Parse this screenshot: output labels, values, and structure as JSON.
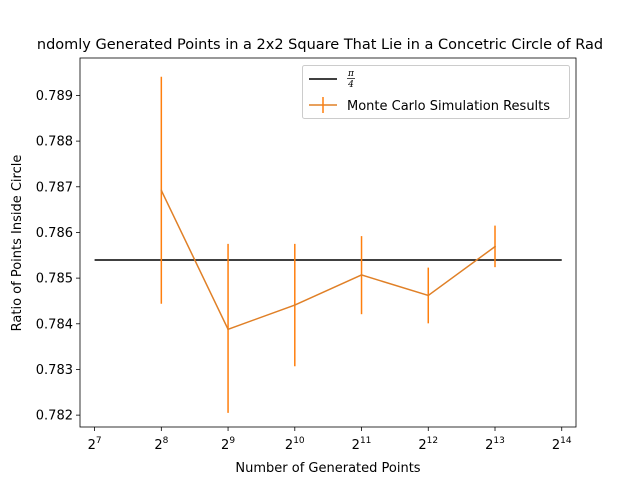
{
  "chart_data": {
    "type": "line",
    "title": "ndomly Generated Points in a 2x2 Square That Lie in a Concetric Circle of Rad",
    "xlabel": "Number of Generated Points",
    "ylabel": "Ratio of Points Inside Circle",
    "x_scale": "log2",
    "x_tick_base": "2",
    "x_ticks": [
      {
        "value": 128,
        "exp": "7"
      },
      {
        "value": 256,
        "exp": "8"
      },
      {
        "value": 512,
        "exp": "9"
      },
      {
        "value": 1024,
        "exp": "10"
      },
      {
        "value": 2048,
        "exp": "11"
      },
      {
        "value": 4096,
        "exp": "12"
      },
      {
        "value": 8192,
        "exp": "13"
      },
      {
        "value": 16384,
        "exp": "14"
      }
    ],
    "y_ticks": [
      {
        "value": 0.782,
        "label": "0.782"
      },
      {
        "value": 0.783,
        "label": "0.783"
      },
      {
        "value": 0.784,
        "label": "0.784"
      },
      {
        "value": 0.785,
        "label": "0.785"
      },
      {
        "value": 0.786,
        "label": "0.786"
      },
      {
        "value": 0.787,
        "label": "0.787"
      },
      {
        "value": 0.788,
        "label": "0.788"
      },
      {
        "value": 0.789,
        "label": "0.789"
      }
    ],
    "xlim": [
      110,
      19000
    ],
    "ylim": [
      0.78174,
      0.78982
    ],
    "reference_line": {
      "label_num": "π",
      "label_den": "4",
      "color": "#000000",
      "y": 0.785398,
      "x_range": [
        128,
        16384
      ]
    },
    "series": [
      {
        "name": "Monte Carlo Simulation Results",
        "color": "#ff7f0e",
        "line_color": "#e08027",
        "x": [
          256,
          512,
          1024,
          2048,
          4096,
          8192
        ],
        "y": [
          0.78692,
          0.78388,
          0.78441,
          0.78507,
          0.78462,
          0.78569
        ],
        "yerr_low": [
          0.78444,
          0.78205,
          0.78307,
          0.78421,
          0.78401,
          0.78524
        ],
        "yerr_high": [
          0.78941,
          0.78575,
          0.78575,
          0.78592,
          0.78523,
          0.78615
        ]
      }
    ],
    "legend": "top-right",
    "grid": false
  }
}
